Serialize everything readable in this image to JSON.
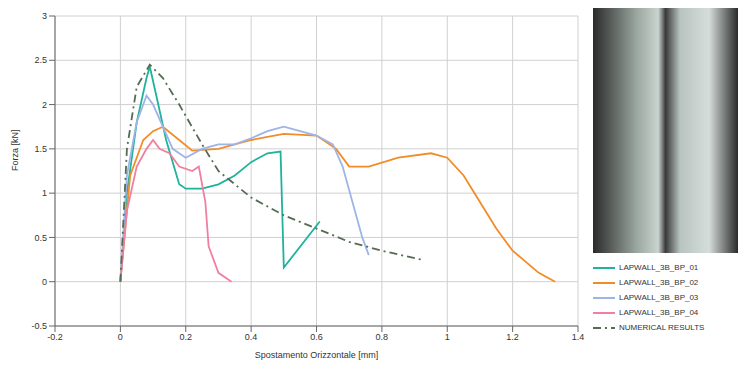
{
  "chart_data": {
    "type": "line",
    "x_label": "Spostamento Orizzontale [mm]",
    "y_label": "Forza [kN]",
    "xlim": [
      -0.2,
      1.4
    ],
    "xticks": [
      -0.2,
      0,
      0.2,
      0.4,
      0.6,
      0.8,
      1,
      1.2,
      1.4
    ],
    "ylim": [
      -0.5,
      3
    ],
    "yticks": [
      -0.5,
      0,
      0.5,
      1,
      1.5,
      2,
      2.5,
      3
    ],
    "grid": true,
    "legend": "right",
    "series": [
      {
        "name": "LAPWALL_3B_BP_01",
        "color": "#1fb39c",
        "line_style": "solid",
        "x": [
          0,
          0.02,
          0.05,
          0.08,
          0.09,
          0.11,
          0.14,
          0.18,
          0.2,
          0.25,
          0.3,
          0.35,
          0.4,
          0.45,
          0.49,
          0.5,
          0.61
        ],
        "values": [
          0,
          1.0,
          1.8,
          2.3,
          2.43,
          2.1,
          1.6,
          1.1,
          1.05,
          1.05,
          1.1,
          1.2,
          1.35,
          1.45,
          1.47,
          0.16,
          0.68
        ]
      },
      {
        "name": "LAPWALL_3B_BP_02",
        "color": "#f28c28",
        "line_style": "solid",
        "x": [
          0,
          0.03,
          0.07,
          0.1,
          0.13,
          0.18,
          0.22,
          0.3,
          0.4,
          0.5,
          0.6,
          0.66,
          0.7,
          0.76,
          0.85,
          0.95,
          1.0,
          1.05,
          1.1,
          1.15,
          1.2,
          1.28,
          1.33
        ],
        "values": [
          0,
          1.2,
          1.6,
          1.7,
          1.75,
          1.6,
          1.48,
          1.5,
          1.6,
          1.67,
          1.65,
          1.5,
          1.3,
          1.3,
          1.4,
          1.45,
          1.4,
          1.2,
          0.9,
          0.6,
          0.35,
          0.1,
          0
        ]
      },
      {
        "name": "LAPWALL_3B_BP_03",
        "color": "#9db5e6",
        "line_style": "solid",
        "x": [
          0,
          0.02,
          0.05,
          0.08,
          0.1,
          0.13,
          0.16,
          0.2,
          0.25,
          0.3,
          0.35,
          0.4,
          0.45,
          0.5,
          0.55,
          0.6,
          0.65,
          0.68,
          0.71,
          0.74,
          0.76
        ],
        "values": [
          0,
          1.2,
          1.8,
          2.1,
          2.0,
          1.75,
          1.5,
          1.4,
          1.5,
          1.55,
          1.55,
          1.62,
          1.7,
          1.75,
          1.7,
          1.65,
          1.55,
          1.3,
          0.9,
          0.5,
          0.3
        ]
      },
      {
        "name": "LAPWALL_3B_BP_04",
        "color": "#f07fa0",
        "line_style": "solid",
        "x": [
          0,
          0.02,
          0.05,
          0.08,
          0.1,
          0.12,
          0.15,
          0.18,
          0.22,
          0.24,
          0.26,
          0.27,
          0.3,
          0.34
        ],
        "values": [
          0,
          0.8,
          1.3,
          1.5,
          1.6,
          1.5,
          1.45,
          1.3,
          1.25,
          1.3,
          0.9,
          0.4,
          0.1,
          0
        ]
      },
      {
        "name": "NUMERICAL RESULTS",
        "color": "#556b55",
        "line_style": "dashdot",
        "x": [
          0,
          0.02,
          0.05,
          0.09,
          0.13,
          0.18,
          0.25,
          0.3,
          0.4,
          0.5,
          0.6,
          0.7,
          0.8,
          0.92
        ],
        "values": [
          0,
          1.5,
          2.2,
          2.45,
          2.3,
          2.0,
          1.55,
          1.25,
          0.95,
          0.75,
          0.6,
          0.45,
          0.35,
          0.25
        ]
      }
    ]
  }
}
